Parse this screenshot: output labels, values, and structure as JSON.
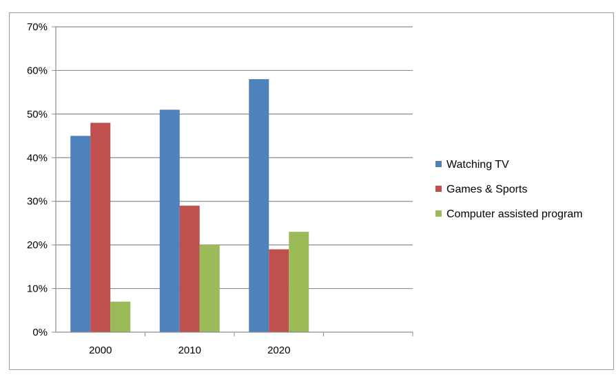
{
  "chart_data": {
    "type": "bar",
    "title": "",
    "xlabel": "",
    "ylabel": "",
    "categories": [
      "2000",
      "2010",
      "2020"
    ],
    "series": [
      {
        "name": "Watching TV",
        "color": "#4F81BD",
        "values": [
          45,
          51,
          58
        ]
      },
      {
        "name": "Games & Sports",
        "color": "#C0504D",
        "values": [
          48,
          29,
          19
        ]
      },
      {
        "name": "Computer assisted program",
        "color": "#9BBB59",
        "values": [
          7,
          20,
          23
        ]
      }
    ],
    "ylim": [
      0,
      70
    ],
    "yticks": [
      0,
      10,
      20,
      30,
      40,
      50,
      60,
      70
    ],
    "ytick_labels": [
      "0%",
      "10%",
      "20%",
      "30%",
      "40%",
      "50%",
      "60%",
      "70%"
    ],
    "grid": true,
    "legend_position": "right",
    "x_slots": 4
  }
}
